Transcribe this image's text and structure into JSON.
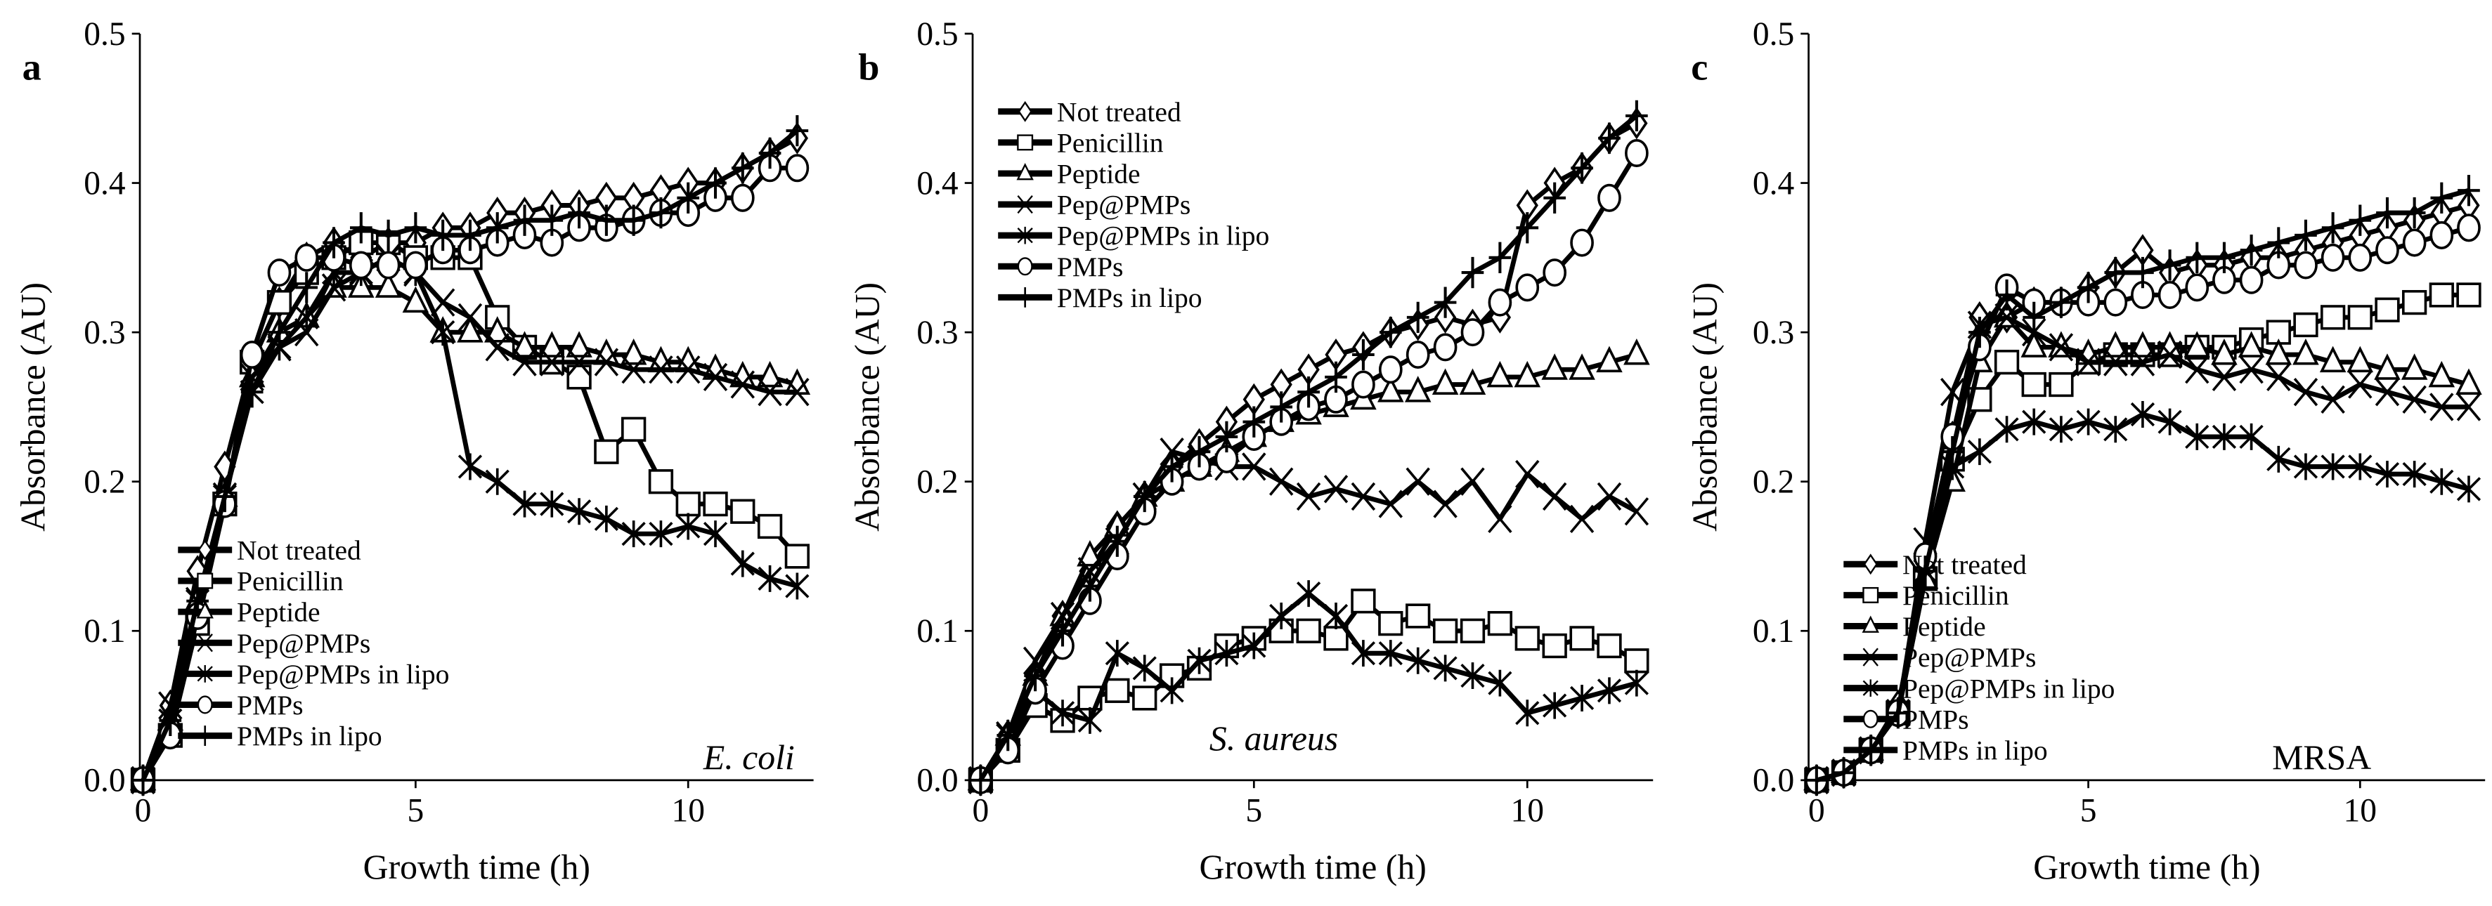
{
  "chart_data": [
    {
      "type": "line",
      "panel_label": "a",
      "organism": "E. coli",
      "organism_italic": true,
      "xlabel": "Growth time (h)",
      "ylabel": "Absorbance (AU)",
      "xlim": [
        -0.5,
        12.3
      ],
      "ylim": [
        0,
        0.5
      ],
      "xticks": [
        "0",
        "5",
        "10"
      ],
      "yticks": [
        "0.0",
        "0.1",
        "0.2",
        "0.3",
        "0.4",
        "0.5"
      ],
      "legend_position": "bottom-left",
      "x": [
        0,
        0.5,
        1,
        1.5,
        2,
        2.5,
        3,
        3.5,
        4,
        4.5,
        5,
        5.5,
        6,
        6.5,
        7,
        7.5,
        8,
        8.5,
        9,
        9.5,
        10,
        10.5,
        11,
        11.5,
        12
      ],
      "series": [
        {
          "name": "Not treated",
          "marker": "diamond",
          "values": [
            0,
            0.05,
            0.14,
            0.21,
            0.28,
            0.32,
            0.35,
            0.36,
            0.35,
            0.36,
            0.36,
            0.37,
            0.37,
            0.38,
            0.38,
            0.385,
            0.385,
            0.39,
            0.39,
            0.395,
            0.4,
            0.4,
            0.41,
            0.42,
            0.43
          ]
        },
        {
          "name": "Penicillin",
          "marker": "square",
          "values": [
            0,
            0.03,
            0.105,
            0.185,
            0.28,
            0.32,
            0.34,
            0.35,
            0.36,
            0.36,
            0.35,
            0.35,
            0.35,
            0.31,
            0.29,
            0.28,
            0.27,
            0.22,
            0.235,
            0.2,
            0.185,
            0.185,
            0.18,
            0.17,
            0.15
          ]
        },
        {
          "name": "Peptide",
          "marker": "triangle",
          "values": [
            0,
            0.04,
            0.12,
            0.19,
            0.27,
            0.3,
            0.31,
            0.33,
            0.33,
            0.33,
            0.32,
            0.3,
            0.3,
            0.3,
            0.29,
            0.29,
            0.29,
            0.285,
            0.285,
            0.28,
            0.28,
            0.275,
            0.27,
            0.27,
            0.265
          ]
        },
        {
          "name": "Pep@PMPs",
          "marker": "x",
          "values": [
            0,
            0.05,
            0.12,
            0.19,
            0.27,
            0.29,
            0.3,
            0.33,
            0.34,
            0.35,
            0.34,
            0.32,
            0.31,
            0.29,
            0.28,
            0.28,
            0.28,
            0.28,
            0.275,
            0.275,
            0.275,
            0.27,
            0.265,
            0.26,
            0.26
          ]
        },
        {
          "name": "Pep@PMPs in lipo",
          "marker": "asterisk",
          "values": [
            0,
            0.04,
            0.12,
            0.19,
            0.26,
            0.29,
            0.31,
            0.34,
            0.34,
            0.35,
            0.34,
            0.3,
            0.21,
            0.2,
            0.185,
            0.185,
            0.18,
            0.175,
            0.165,
            0.165,
            0.17,
            0.165,
            0.145,
            0.135,
            0.13
          ]
        },
        {
          "name": "PMPs",
          "marker": "circle",
          "values": [
            0,
            0.03,
            0.11,
            0.185,
            0.285,
            0.34,
            0.35,
            0.35,
            0.345,
            0.345,
            0.345,
            0.355,
            0.355,
            0.36,
            0.365,
            0.36,
            0.37,
            0.37,
            0.375,
            0.38,
            0.38,
            0.39,
            0.39,
            0.41,
            0.41
          ]
        },
        {
          "name": "PMPs in lipo",
          "marker": "plus",
          "values": [
            0,
            0.04,
            0.12,
            0.19,
            0.26,
            0.3,
            0.33,
            0.36,
            0.37,
            0.365,
            0.37,
            0.365,
            0.365,
            0.37,
            0.375,
            0.375,
            0.38,
            0.375,
            0.375,
            0.38,
            0.39,
            0.4,
            0.41,
            0.42,
            0.435
          ]
        }
      ]
    },
    {
      "type": "line",
      "panel_label": "b",
      "organism": "S. aureus",
      "organism_italic": true,
      "xlabel": "Growth time (h)",
      "ylabel": "Absorbance (AU)",
      "xlim": [
        -0.5,
        12.3
      ],
      "ylim": [
        0,
        0.5
      ],
      "xticks": [
        "0",
        "5",
        "10"
      ],
      "yticks": [
        "0.0",
        "0.1",
        "0.2",
        "0.3",
        "0.4",
        "0.5"
      ],
      "legend_position": "top-left",
      "x": [
        0,
        0.5,
        1,
        1.5,
        2,
        2.5,
        3,
        3.5,
        4,
        4.5,
        5,
        5.5,
        6,
        6.5,
        7,
        7.5,
        8,
        8.5,
        9,
        9.5,
        10,
        10.5,
        11,
        11.5,
        12
      ],
      "series": [
        {
          "name": "Not treated",
          "marker": "diamond",
          "values": [
            0,
            0.03,
            0.07,
            0.11,
            0.14,
            0.17,
            0.19,
            0.21,
            0.225,
            0.24,
            0.255,
            0.265,
            0.275,
            0.285,
            0.29,
            0.3,
            0.305,
            0.31,
            0.305,
            0.31,
            0.385,
            0.4,
            0.41,
            0.43,
            0.44
          ]
        },
        {
          "name": "Penicillin",
          "marker": "square",
          "values": [
            0,
            0.02,
            0.05,
            0.04,
            0.055,
            0.06,
            0.055,
            0.07,
            0.075,
            0.09,
            0.095,
            0.1,
            0.1,
            0.095,
            0.12,
            0.105,
            0.11,
            0.1,
            0.1,
            0.105,
            0.095,
            0.09,
            0.095,
            0.09,
            0.08
          ]
        },
        {
          "name": "Peptide",
          "marker": "triangle",
          "values": [
            0,
            0.03,
            0.07,
            0.11,
            0.15,
            0.17,
            0.19,
            0.2,
            0.21,
            0.22,
            0.23,
            0.24,
            0.245,
            0.25,
            0.255,
            0.26,
            0.26,
            0.265,
            0.265,
            0.27,
            0.27,
            0.275,
            0.275,
            0.28,
            0.285
          ]
        },
        {
          "name": "Pep@PMPs",
          "marker": "x",
          "values": [
            0,
            0.03,
            0.08,
            0.11,
            0.14,
            0.16,
            0.19,
            0.22,
            0.215,
            0.21,
            0.21,
            0.2,
            0.19,
            0.195,
            0.19,
            0.185,
            0.2,
            0.185,
            0.2,
            0.175,
            0.205,
            0.19,
            0.175,
            0.19,
            0.18
          ]
        },
        {
          "name": "Pep@PMPs in lipo",
          "marker": "asterisk",
          "values": [
            0,
            0.03,
            0.06,
            0.045,
            0.04,
            0.085,
            0.075,
            0.06,
            0.08,
            0.085,
            0.09,
            0.11,
            0.125,
            0.11,
            0.085,
            0.085,
            0.08,
            0.075,
            0.07,
            0.065,
            0.045,
            0.05,
            0.055,
            0.06,
            0.065
          ]
        },
        {
          "name": "PMPs",
          "marker": "circle",
          "values": [
            0,
            0.02,
            0.06,
            0.09,
            0.12,
            0.15,
            0.18,
            0.2,
            0.21,
            0.215,
            0.23,
            0.24,
            0.25,
            0.255,
            0.265,
            0.275,
            0.285,
            0.29,
            0.3,
            0.32,
            0.33,
            0.34,
            0.36,
            0.39,
            0.42
          ]
        },
        {
          "name": "PMPs in lipo",
          "marker": "plus",
          "values": [
            0,
            0.03,
            0.07,
            0.1,
            0.13,
            0.16,
            0.19,
            0.21,
            0.22,
            0.23,
            0.24,
            0.25,
            0.26,
            0.27,
            0.285,
            0.3,
            0.31,
            0.32,
            0.34,
            0.35,
            0.37,
            0.39,
            0.41,
            0.43,
            0.445
          ]
        }
      ]
    },
    {
      "type": "line",
      "panel_label": "c",
      "organism": "MRSA",
      "organism_italic": false,
      "xlabel": "Growth time (h)",
      "ylabel": "Absorbance (AU)",
      "xlim": [
        -0.5,
        12.3
      ],
      "ylim": [
        0,
        0.5
      ],
      "xticks": [
        "0",
        "5",
        "10"
      ],
      "yticks": [
        "0.0",
        "0.1",
        "0.2",
        "0.3",
        "0.4",
        "0.5"
      ],
      "legend_position": "bottom-left",
      "x": [
        0,
        0.5,
        1,
        1.5,
        2,
        2.5,
        3,
        3.5,
        4,
        4.5,
        5,
        5.5,
        6,
        6.5,
        7,
        7.5,
        8,
        8.5,
        9,
        9.5,
        10,
        10.5,
        11,
        11.5,
        12
      ],
      "series": [
        {
          "name": "Not treated",
          "marker": "diamond",
          "values": [
            0,
            0.005,
            0.02,
            0.05,
            0.14,
            0.23,
            0.31,
            0.31,
            0.32,
            0.32,
            0.33,
            0.34,
            0.355,
            0.34,
            0.345,
            0.345,
            0.35,
            0.35,
            0.355,
            0.36,
            0.365,
            0.37,
            0.375,
            0.38,
            0.385
          ]
        },
        {
          "name": "Penicillin",
          "marker": "square",
          "values": [
            0,
            0.005,
            0.02,
            0.045,
            0.135,
            0.215,
            0.255,
            0.28,
            0.265,
            0.265,
            0.28,
            0.285,
            0.285,
            0.285,
            0.29,
            0.29,
            0.295,
            0.3,
            0.305,
            0.31,
            0.31,
            0.315,
            0.32,
            0.325,
            0.325
          ]
        },
        {
          "name": "Peptide",
          "marker": "triangle",
          "values": [
            0,
            0.005,
            0.02,
            0.045,
            0.135,
            0.2,
            0.28,
            0.31,
            0.29,
            0.29,
            0.285,
            0.29,
            0.29,
            0.29,
            0.29,
            0.285,
            0.29,
            0.285,
            0.285,
            0.28,
            0.28,
            0.275,
            0.275,
            0.27,
            0.265
          ]
        },
        {
          "name": "Pep@PMPs",
          "marker": "x",
          "values": [
            0,
            0.005,
            0.02,
            0.045,
            0.16,
            0.26,
            0.305,
            0.31,
            0.3,
            0.29,
            0.28,
            0.28,
            0.28,
            0.285,
            0.275,
            0.27,
            0.275,
            0.27,
            0.26,
            0.255,
            0.265,
            0.26,
            0.255,
            0.25,
            0.25
          ]
        },
        {
          "name": "Pep@PMPs in lipo",
          "marker": "asterisk",
          "values": [
            0,
            0.005,
            0.02,
            0.045,
            0.14,
            0.21,
            0.22,
            0.235,
            0.24,
            0.235,
            0.24,
            0.235,
            0.245,
            0.24,
            0.23,
            0.23,
            0.23,
            0.215,
            0.21,
            0.21,
            0.21,
            0.205,
            0.205,
            0.2,
            0.195
          ]
        },
        {
          "name": "PMPs",
          "marker": "circle",
          "values": [
            0,
            0.005,
            0.02,
            0.045,
            0.15,
            0.23,
            0.29,
            0.33,
            0.32,
            0.32,
            0.32,
            0.32,
            0.325,
            0.325,
            0.33,
            0.335,
            0.335,
            0.345,
            0.345,
            0.35,
            0.35,
            0.355,
            0.36,
            0.365,
            0.37
          ]
        },
        {
          "name": "PMPs in lipo",
          "marker": "plus",
          "values": [
            0,
            0.005,
            0.02,
            0.045,
            0.14,
            0.22,
            0.3,
            0.325,
            0.31,
            0.32,
            0.33,
            0.34,
            0.34,
            0.345,
            0.35,
            0.35,
            0.355,
            0.36,
            0.365,
            0.37,
            0.375,
            0.38,
            0.38,
            0.39,
            0.395
          ]
        }
      ]
    }
  ]
}
